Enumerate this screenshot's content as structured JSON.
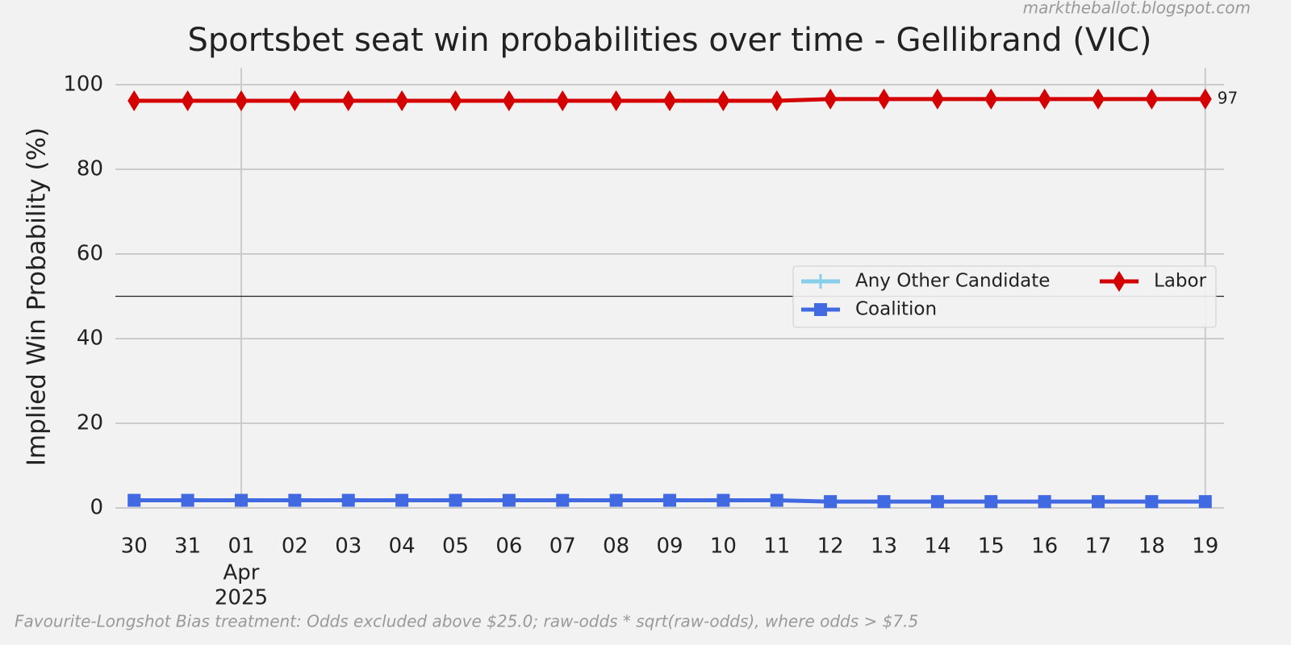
{
  "chart_data": {
    "type": "line",
    "title": "Sportsbet seat win probabilities over time - Gellibrand (VIC)",
    "y_label": "Implied Win Probability (%)",
    "watermark": "marktheballot.blogspot.com",
    "footnote": "Favourite-Longshot Bias treatment: Odds excluded above $25.0; raw-odds * sqrt(raw-odds), where odds > $7.5",
    "categories": [
      "30",
      "31",
      "01",
      "02",
      "03",
      "04",
      "05",
      "06",
      "07",
      "08",
      "09",
      "10",
      "11",
      "12",
      "13",
      "14",
      "15",
      "16",
      "17",
      "18",
      "19"
    ],
    "month_label": "Apr",
    "year_label": "2025",
    "month_at": "01",
    "x_major": [
      "01",
      "19"
    ],
    "ylim": [
      0,
      104
    ],
    "yticks": [
      0,
      20,
      40,
      60,
      80,
      100
    ],
    "grid": true,
    "hline": 50,
    "legend": "center right",
    "series": [
      {
        "name": "Any Other Candidate",
        "color": "#87ceeb",
        "marker": "plus",
        "values": [
          null,
          null,
          null,
          null,
          null,
          null,
          null,
          null,
          null,
          null,
          null,
          null,
          null,
          null,
          null,
          null,
          null,
          null,
          null,
          null,
          null
        ]
      },
      {
        "name": "Coalition",
        "color": "#4169e1",
        "marker": "square",
        "values": [
          1.8,
          1.8,
          1.8,
          1.8,
          1.8,
          1.8,
          1.8,
          1.8,
          1.8,
          1.8,
          1.8,
          1.8,
          1.8,
          1.5,
          1.5,
          1.5,
          1.5,
          1.5,
          1.5,
          1.5,
          1.5
        ]
      },
      {
        "name": "Labor",
        "color": "#d40000",
        "marker": "diamond",
        "values": [
          96.2,
          96.2,
          96.2,
          96.2,
          96.2,
          96.2,
          96.2,
          96.2,
          96.2,
          96.2,
          96.2,
          96.2,
          96.2,
          96.6,
          96.6,
          96.6,
          96.6,
          96.6,
          96.6,
          96.6,
          96.6
        ],
        "value_labels": [
          null,
          null,
          null,
          null,
          null,
          null,
          null,
          null,
          null,
          null,
          null,
          null,
          null,
          null,
          null,
          null,
          null,
          null,
          null,
          null,
          "97"
        ]
      }
    ]
  }
}
